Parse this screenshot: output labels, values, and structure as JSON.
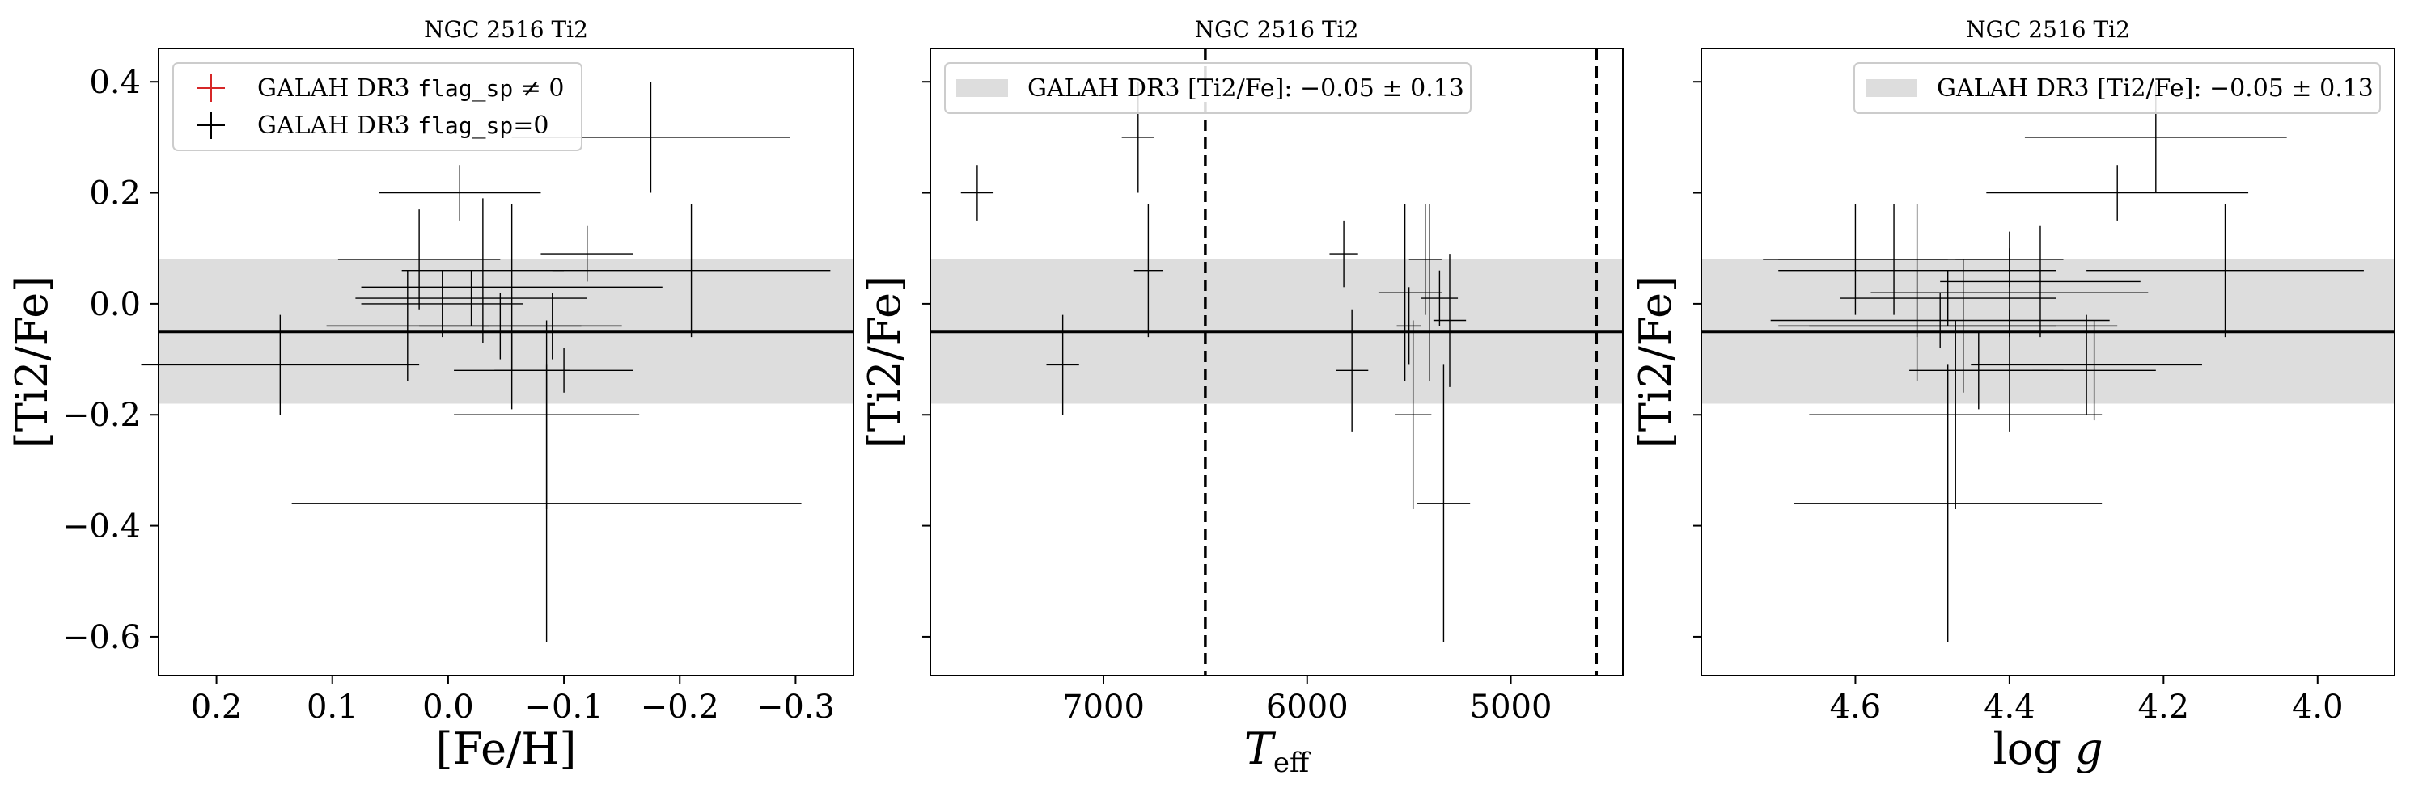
{
  "colors": {
    "flag_nonzero": "#d62728",
    "data": "#000000",
    "band": "#dddddd"
  },
  "chart_data": [
    {
      "type": "scatter",
      "title": "NGC 2516 Ti2",
      "xlabel": "[Fe/H]",
      "ylabel": "[Ti2/Fe]",
      "xlim": [
        0.25,
        -0.35
      ],
      "ylim": [
        -0.67,
        0.46
      ],
      "x_inverted": true,
      "xticks": [
        0.2,
        0.1,
        0.0,
        -0.1,
        -0.2,
        -0.3
      ],
      "xtick_labels": [
        "0.2",
        "0.1",
        "0.0",
        "−0.1",
        "−0.2",
        "−0.3"
      ],
      "yticks": [
        0.4,
        0.2,
        0.0,
        -0.2,
        -0.4,
        -0.6
      ],
      "ytick_labels": [
        "0.4",
        "0.2",
        "0.0",
        "−0.2",
        "−0.4",
        "−0.6"
      ],
      "show_yticklabels": true,
      "mean": -0.05,
      "std": 0.13,
      "vlines": [],
      "legend": {
        "placement": "top-left",
        "entries": [
          {
            "kind": "marker",
            "color": "#d62728",
            "pre": "GALAH DR3 ",
            "mono": "flag_sp",
            "post": " ≠ 0"
          },
          {
            "kind": "marker",
            "color": "#000000",
            "pre": "GALAH DR3 ",
            "mono": "flag_sp",
            "post": "=0"
          }
        ]
      },
      "series": [
        {
          "name": "GALAH DR3 flag_sp=0",
          "points": [
            {
              "x": 0.145,
              "y": -0.11,
              "xerr": 0.12,
              "yerr": 0.09
            },
            {
              "x": -0.175,
              "y": 0.3,
              "xerr": 0.12,
              "yerr": 0.1
            },
            {
              "x": -0.01,
              "y": 0.2,
              "xerr": 0.07,
              "yerr": 0.05
            },
            {
              "x": 0.025,
              "y": 0.08,
              "xerr": 0.07,
              "yerr": 0.09
            },
            {
              "x": -0.03,
              "y": 0.06,
              "xerr": 0.07,
              "yerr": 0.13
            },
            {
              "x": -0.055,
              "y": 0.03,
              "xerr": 0.13,
              "yerr": 0.15
            },
            {
              "x": -0.12,
              "y": 0.09,
              "xerr": 0.04,
              "yerr": 0.05
            },
            {
              "x": -0.21,
              "y": 0.06,
              "xerr": 0.12,
              "yerr": 0.12
            },
            {
              "x": 0.005,
              "y": -0.0,
              "xerr": 0.07,
              "yerr": 0.06
            },
            {
              "x": 0.035,
              "y": -0.04,
              "xerr": 0.07,
              "yerr": 0.1
            },
            {
              "x": -0.045,
              "y": -0.04,
              "xerr": 0.07,
              "yerr": 0.06
            },
            {
              "x": -0.02,
              "y": 0.01,
              "xerr": 0.1,
              "yerr": 0.05
            },
            {
              "x": -0.055,
              "y": -0.12,
              "xerr": 0.05,
              "yerr": 0.07
            },
            {
              "x": -0.085,
              "y": -0.2,
              "xerr": 0.08,
              "yerr": 0.17
            },
            {
              "x": -0.085,
              "y": -0.36,
              "xerr": 0.22,
              "yerr": 0.25
            },
            {
              "x": -0.09,
              "y": -0.04,
              "xerr": 0.06,
              "yerr": 0.06
            },
            {
              "x": -0.1,
              "y": -0.12,
              "xerr": 0.06,
              "yerr": 0.04
            }
          ]
        }
      ]
    },
    {
      "type": "scatter",
      "title": "NGC 2516 Ti2",
      "xlabel": "T_eff",
      "ylabel": "[Ti2/Fe]",
      "xlim": [
        7850,
        4450
      ],
      "ylim": [
        -0.67,
        0.46
      ],
      "x_inverted": true,
      "xticks": [
        7000,
        6000,
        5000
      ],
      "xtick_labels": [
        "7000",
        "6000",
        "5000"
      ],
      "yticks": [
        0.4,
        0.2,
        0.0,
        -0.2,
        -0.4,
        -0.6
      ],
      "ytick_labels": [],
      "show_yticklabels": false,
      "mean": -0.05,
      "std": 0.13,
      "vlines": [
        6500,
        4580
      ],
      "legend": {
        "placement": "top-left",
        "entries": [
          {
            "kind": "patch",
            "color": "#dddddd",
            "pre": "GALAH DR3 [Ti2/Fe]: −0.05 ± 0.13",
            "mono": "",
            "post": ""
          }
        ]
      },
      "series": [
        {
          "name": "GALAH DR3 flag_sp=0",
          "points": [
            {
              "x": 7620,
              "y": 0.2,
              "xerr": 80,
              "yerr": 0.05
            },
            {
              "x": 6830,
              "y": 0.3,
              "xerr": 80,
              "yerr": 0.1
            },
            {
              "x": 6780,
              "y": 0.06,
              "xerr": 70,
              "yerr": 0.12
            },
            {
              "x": 7200,
              "y": -0.11,
              "xerr": 80,
              "yerr": 0.09
            },
            {
              "x": 5820,
              "y": 0.09,
              "xerr": 70,
              "yerr": 0.06
            },
            {
              "x": 5780,
              "y": -0.12,
              "xerr": 80,
              "yerr": 0.11
            },
            {
              "x": 5520,
              "y": 0.02,
              "xerr": 130,
              "yerr": 0.16
            },
            {
              "x": 5500,
              "y": -0.04,
              "xerr": 60,
              "yerr": 0.07
            },
            {
              "x": 5480,
              "y": -0.2,
              "xerr": 90,
              "yerr": 0.17
            },
            {
              "x": 5420,
              "y": 0.08,
              "xerr": 80,
              "yerr": 0.1
            },
            {
              "x": 5400,
              "y": 0.02,
              "xerr": 60,
              "yerr": 0.16
            },
            {
              "x": 5350,
              "y": 0.01,
              "xerr": 90,
              "yerr": 0.05
            },
            {
              "x": 5330,
              "y": -0.36,
              "xerr": 130,
              "yerr": 0.25
            },
            {
              "x": 5300,
              "y": -0.03,
              "xerr": 80,
              "yerr": 0.12
            }
          ]
        }
      ]
    },
    {
      "type": "scatter",
      "title": "NGC 2516 Ti2",
      "xlabel": "log g",
      "ylabel": "[Ti2/Fe]",
      "xlim": [
        4.8,
        3.9
      ],
      "ylim": [
        -0.67,
        0.46
      ],
      "x_inverted": true,
      "xticks": [
        4.6,
        4.4,
        4.2,
        4.0
      ],
      "xtick_labels": [
        "4.6",
        "4.4",
        "4.2",
        "4.0"
      ],
      "yticks": [
        0.4,
        0.2,
        0.0,
        -0.2,
        -0.4,
        -0.6
      ],
      "ytick_labels": [],
      "show_yticklabels": false,
      "mean": -0.05,
      "std": 0.13,
      "vlines": [],
      "legend": {
        "placement": "top-right",
        "entries": [
          {
            "kind": "patch",
            "color": "#dddddd",
            "pre": "GALAH DR3 [Ti2/Fe]: −0.05 ± 0.13",
            "mono": "",
            "post": ""
          }
        ]
      },
      "series": [
        {
          "name": "GALAH DR3 flag_sp=0",
          "points": [
            {
              "x": 4.21,
              "y": 0.3,
              "xerr": 0.17,
              "yerr": 0.1
            },
            {
              "x": 4.26,
              "y": 0.2,
              "xerr": 0.17,
              "yerr": 0.05
            },
            {
              "x": 4.4,
              "y": 0.08,
              "xerr": 0.07,
              "yerr": 0.05
            },
            {
              "x": 4.52,
              "y": 0.06,
              "xerr": 0.18,
              "yerr": 0.12
            },
            {
              "x": 4.55,
              "y": 0.08,
              "xerr": 0.15,
              "yerr": 0.1
            },
            {
              "x": 4.6,
              "y": 0.08,
              "xerr": 0.12,
              "yerr": 0.1
            },
            {
              "x": 4.12,
              "y": 0.06,
              "xerr": 0.18,
              "yerr": 0.12
            },
            {
              "x": 4.36,
              "y": 0.04,
              "xerr": 0.13,
              "yerr": 0.1
            },
            {
              "x": 4.4,
              "y": 0.02,
              "xerr": 0.18,
              "yerr": 0.08
            },
            {
              "x": 4.48,
              "y": 0.01,
              "xerr": 0.14,
              "yerr": 0.05
            },
            {
              "x": 4.49,
              "y": -0.03,
              "xerr": 0.22,
              "yerr": 0.05
            },
            {
              "x": 4.52,
              "y": -0.04,
              "xerr": 0.18,
              "yerr": 0.1
            },
            {
              "x": 4.46,
              "y": -0.04,
              "xerr": 0.2,
              "yerr": 0.12
            },
            {
              "x": 4.44,
              "y": -0.12,
              "xerr": 0.09,
              "yerr": 0.07
            },
            {
              "x": 4.29,
              "y": -0.12,
              "xerr": 0.08,
              "yerr": 0.09
            },
            {
              "x": 4.4,
              "y": -0.12,
              "xerr": 0.07,
              "yerr": 0.11
            },
            {
              "x": 4.47,
              "y": -0.2,
              "xerr": 0.19,
              "yerr": 0.17
            },
            {
              "x": 4.48,
              "y": -0.36,
              "xerr": 0.2,
              "yerr": 0.25
            },
            {
              "x": 4.3,
              "y": -0.11,
              "xerr": 0.15,
              "yerr": 0.09
            }
          ]
        }
      ]
    }
  ]
}
